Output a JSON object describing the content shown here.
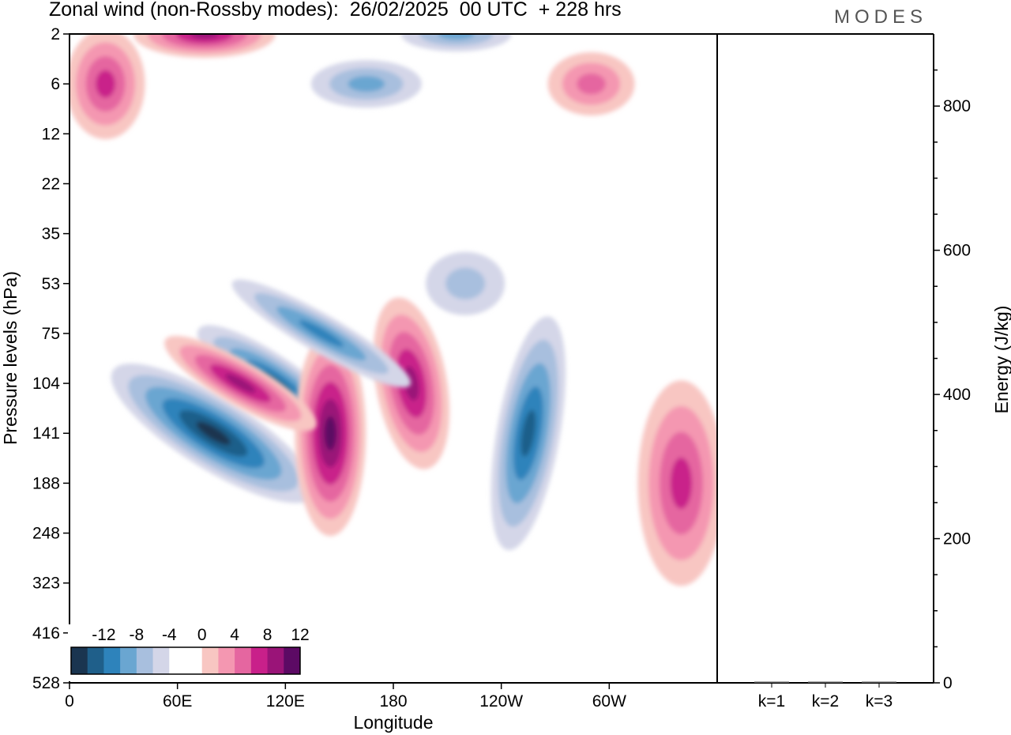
{
  "header": {
    "title": "Zonal wind (non-Rossby modes):  26/02/2025  00 UTC  + 228 hrs",
    "brand": "MODES"
  },
  "colors": {
    "negative": [
      "#1a3550",
      "#1f5f8a",
      "#2e83bb",
      "#6aa6d1",
      "#a8bfde",
      "#d4d6e8"
    ],
    "neutral": "#ffffff",
    "positive": [
      "#f8c6c2",
      "#f497b1",
      "#e566a0",
      "#c9208a",
      "#9a1478",
      "#5c0a64"
    ]
  },
  "chart_data": [
    {
      "type": "heatmap",
      "title": "",
      "xlabel": "Longitude",
      "ylabel": "Pressure levels (hPa)",
      "x_ticks": [
        "0",
        "60E",
        "120E",
        "180",
        "120W",
        "60W"
      ],
      "y_ticks": [
        "2",
        "6",
        "12",
        "22",
        "35",
        "53",
        "75",
        "104",
        "141",
        "188",
        "248",
        "323",
        "416",
        "528"
      ],
      "colorbar": {
        "labels": [
          "-12",
          "-8",
          "-4",
          "0",
          "4",
          "8",
          "12"
        ],
        "bins": 12
      },
      "features": [
        {
          "lon": 80,
          "level": "141",
          "value": -10
        },
        {
          "lon": 115,
          "level": "104",
          "value": -9
        },
        {
          "lon": 145,
          "level": "141",
          "value": 11
        },
        {
          "lon": 190,
          "level": "104",
          "value": 9
        },
        {
          "lon": 95,
          "level": "104",
          "value": 8
        },
        {
          "lon": 140,
          "level": "75",
          "value": -6
        },
        {
          "lon": 255,
          "level": "141",
          "value": -9
        },
        {
          "lon": 220,
          "level": "53",
          "value": -3
        },
        {
          "lon": 340,
          "level": "188",
          "value": 6
        },
        {
          "lon": 20,
          "level": "6",
          "value": 6
        },
        {
          "lon": 290,
          "level": "6",
          "value": 5
        },
        {
          "lon": 75,
          "level": "2",
          "value": 8
        },
        {
          "lon": 165,
          "level": "6",
          "value": -5
        },
        {
          "lon": 215,
          "level": "2",
          "value": -4
        }
      ]
    },
    {
      "type": "bar",
      "title": "",
      "xlabel": "",
      "ylabel": "Energy (J/kg)",
      "categories": [
        "k=1",
        "k=2",
        "k=3"
      ],
      "values": [
        1,
        1,
        1
      ],
      "y_ticks": [
        "0",
        "200",
        "400",
        "600",
        "800"
      ],
      "ylim": [
        0,
        900
      ]
    }
  ]
}
